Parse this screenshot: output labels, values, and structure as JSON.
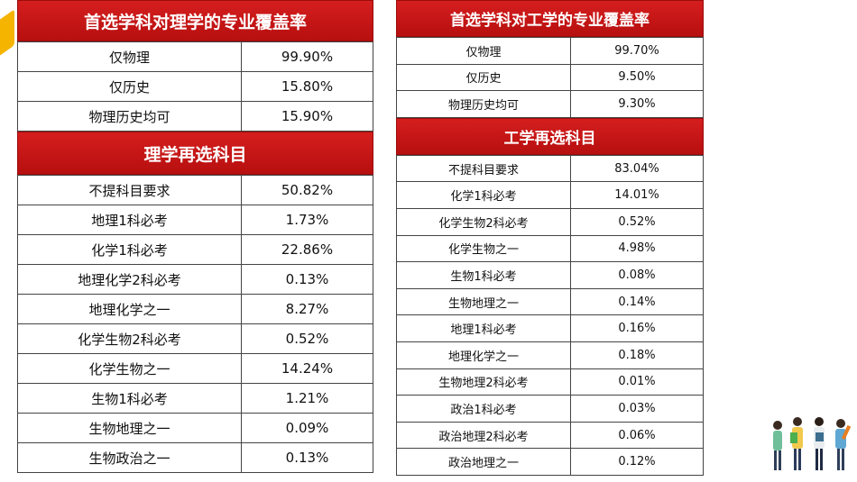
{
  "left": {
    "header1": "首选学科对理学的专业覆盖率",
    "coverage": [
      [
        "仅物理",
        "99.90%"
      ],
      [
        "仅历史",
        "15.80%"
      ],
      [
        "物理历史均可",
        "15.90%"
      ]
    ],
    "header2": "理学再选科目",
    "reselect": [
      [
        "不提科目要求",
        "50.82%"
      ],
      [
        "地理1科必考",
        "1.73%"
      ],
      [
        "化学1科必考",
        "22.86%"
      ],
      [
        "地理化学2科必考",
        "0.13%"
      ],
      [
        "地理化学之一",
        "8.27%"
      ],
      [
        "化学生物2科必考",
        "0.52%"
      ],
      [
        "化学生物之一",
        "14.24%"
      ],
      [
        "生物1科必考",
        "1.21%"
      ],
      [
        "生物地理之一",
        "0.09%"
      ],
      [
        "生物政治之一",
        "0.13%"
      ]
    ]
  },
  "right": {
    "header1": "首选学科对工学的专业覆盖率",
    "coverage": [
      [
        "仅物理",
        "99.70%"
      ],
      [
        "仅历史",
        "9.50%"
      ],
      [
        "物理历史均可",
        "9.30%"
      ]
    ],
    "header2": "工学再选科目",
    "reselect": [
      [
        "不提科目要求",
        "83.04%"
      ],
      [
        "化学1科必考",
        "14.01%"
      ],
      [
        "化学生物2科必考",
        "0.52%"
      ],
      [
        "化学生物之一",
        "4.98%"
      ],
      [
        "生物1科必考",
        "0.08%"
      ],
      [
        "生物地理之一",
        "0.14%"
      ],
      [
        "地理1科必考",
        "0.16%"
      ],
      [
        "地理化学之一",
        "0.18%"
      ],
      [
        "生物地理2科必考",
        "0.01%"
      ],
      [
        "政治1科必考",
        "0.03%"
      ],
      [
        "政治地理2科必考",
        "0.06%"
      ],
      [
        "政治地理之一",
        "0.12%"
      ]
    ]
  },
  "colors": {
    "header_red": "#c41414",
    "accent_yellow": "#f4b400"
  },
  "decorations": [
    "corner-triangle",
    "people-illustration"
  ]
}
